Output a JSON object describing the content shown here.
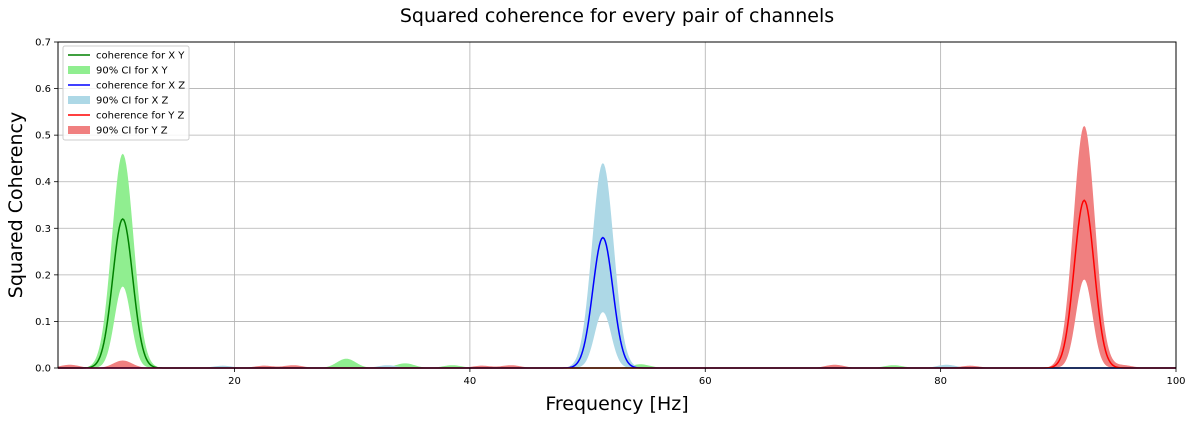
{
  "chart_data": {
    "type": "line",
    "title": "Squared coherence for every pair of channels",
    "xlabel": "Frequency [Hz]",
    "ylabel": "Squared Coherency",
    "xlim": [
      5,
      100
    ],
    "ylim": [
      0,
      0.7
    ],
    "xticks": [
      20,
      40,
      60,
      80,
      100
    ],
    "yticks": [
      0.0,
      0.1,
      0.2,
      0.3,
      0.4,
      0.5,
      0.6,
      0.7
    ],
    "grid": true,
    "legend_position": "top-left",
    "series": [
      {
        "name": "coherence for X Y",
        "ci_name": "90% CI for X Y",
        "line_color": "#008000",
        "ci_color": "#90ee90",
        "peak_frequency": 10.5,
        "peak_coherence": 0.32,
        "ci_peak_upper": 0.46,
        "ci_peak_lower": 0.175,
        "background_ripples": [
          [
            29.5,
            0.02
          ],
          [
            34.5,
            0.01
          ],
          [
            38.5,
            0.006
          ],
          [
            54.5,
            0.008
          ],
          [
            76,
            0.006
          ]
        ]
      },
      {
        "name": "coherence for X Z",
        "ci_name": "90% CI for X Z",
        "line_color": "#0000ff",
        "ci_color": "#add8e6",
        "peak_frequency": 51.3,
        "peak_coherence": 0.28,
        "ci_peak_upper": 0.44,
        "ci_peak_lower": 0.12,
        "background_ripples": [
          [
            19,
            0.005
          ],
          [
            33,
            0.006
          ],
          [
            80.5,
            0.007
          ]
        ]
      },
      {
        "name": "coherence for Y Z",
        "ci_name": "90% CI for Y Z",
        "line_color": "#ff0000",
        "ci_color": "#f08080",
        "peak_frequency": 92.2,
        "peak_coherence": 0.36,
        "ci_peak_upper": 0.52,
        "ci_peak_lower": 0.19,
        "background_ripples": [
          [
            6,
            0.007
          ],
          [
            10.5,
            0.016
          ],
          [
            22.5,
            0.005
          ],
          [
            25,
            0.006
          ],
          [
            41,
            0.005
          ],
          [
            43.5,
            0.006
          ],
          [
            71,
            0.007
          ],
          [
            82.5,
            0.005
          ],
          [
            95.5,
            0.006
          ]
        ]
      }
    ]
  }
}
